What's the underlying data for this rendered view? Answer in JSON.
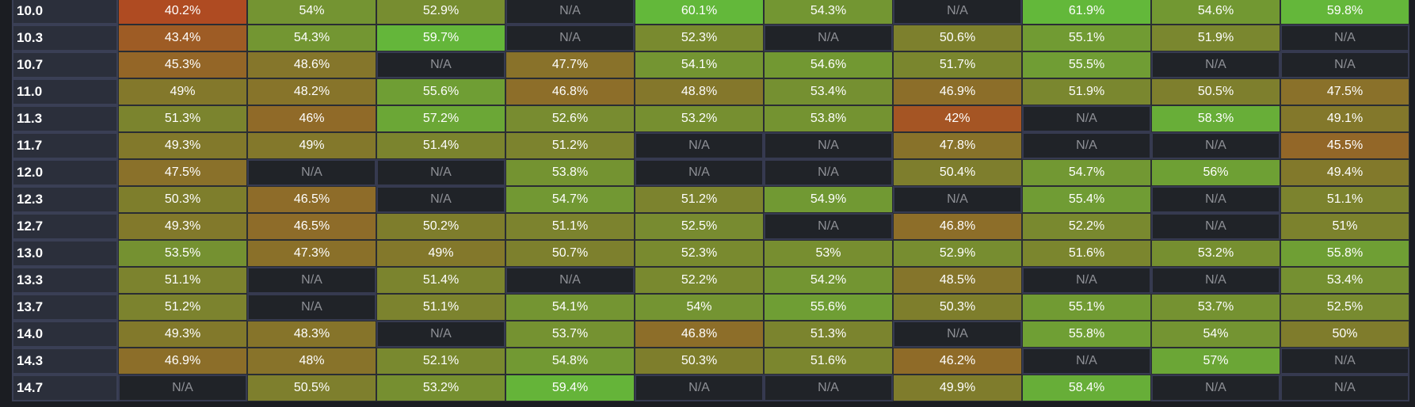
{
  "colors": {
    "low": "#b04a22",
    "mid_low": "#906a28",
    "mid": "#7f7c2c",
    "high": "#63b83a",
    "na_bg": "#202328"
  },
  "na_label": "N/A",
  "rows": [
    {
      "label": "10.0",
      "values": [
        "40.2%",
        "54%",
        "52.9%",
        "N/A",
        "60.1%",
        "54.3%",
        "N/A",
        "61.9%",
        "54.6%",
        "59.8%"
      ]
    },
    {
      "label": "10.3",
      "values": [
        "43.4%",
        "54.3%",
        "59.7%",
        "N/A",
        "52.3%",
        "N/A",
        "50.6%",
        "55.1%",
        "51.9%",
        "N/A"
      ]
    },
    {
      "label": "10.7",
      "values": [
        "45.3%",
        "48.6%",
        "N/A",
        "47.7%",
        "54.1%",
        "54.6%",
        "51.7%",
        "55.5%",
        "N/A",
        "N/A"
      ]
    },
    {
      "label": "11.0",
      "values": [
        "49%",
        "48.2%",
        "55.6%",
        "46.8%",
        "48.8%",
        "53.4%",
        "46.9%",
        "51.9%",
        "50.5%",
        "47.5%"
      ]
    },
    {
      "label": "11.3",
      "values": [
        "51.3%",
        "46%",
        "57.2%",
        "52.6%",
        "53.2%",
        "53.8%",
        "42%",
        "N/A",
        "58.3%",
        "49.1%"
      ]
    },
    {
      "label": "11.7",
      "values": [
        "49.3%",
        "49%",
        "51.4%",
        "51.2%",
        "N/A",
        "N/A",
        "47.8%",
        "N/A",
        "N/A",
        "45.5%"
      ]
    },
    {
      "label": "12.0",
      "values": [
        "47.5%",
        "N/A",
        "N/A",
        "53.8%",
        "N/A",
        "N/A",
        "50.4%",
        "54.7%",
        "56%",
        "49.4%"
      ]
    },
    {
      "label": "12.3",
      "values": [
        "50.3%",
        "46.5%",
        "N/A",
        "54.7%",
        "51.2%",
        "54.9%",
        "N/A",
        "55.4%",
        "N/A",
        "51.1%"
      ]
    },
    {
      "label": "12.7",
      "values": [
        "49.3%",
        "46.5%",
        "50.2%",
        "51.1%",
        "52.5%",
        "N/A",
        "46.8%",
        "52.2%",
        "N/A",
        "51%"
      ]
    },
    {
      "label": "13.0",
      "values": [
        "53.5%",
        "47.3%",
        "49%",
        "50.7%",
        "52.3%",
        "53%",
        "52.9%",
        "51.6%",
        "53.2%",
        "55.8%"
      ]
    },
    {
      "label": "13.3",
      "values": [
        "51.1%",
        "N/A",
        "51.4%",
        "N/A",
        "52.2%",
        "54.2%",
        "48.5%",
        "N/A",
        "N/A",
        "53.4%"
      ]
    },
    {
      "label": "13.7",
      "values": [
        "51.2%",
        "N/A",
        "51.1%",
        "54.1%",
        "54%",
        "55.6%",
        "50.3%",
        "55.1%",
        "53.7%",
        "52.5%"
      ]
    },
    {
      "label": "14.0",
      "values": [
        "49.3%",
        "48.3%",
        "N/A",
        "53.7%",
        "46.8%",
        "51.3%",
        "N/A",
        "55.8%",
        "54%",
        "50%"
      ]
    },
    {
      "label": "14.3",
      "values": [
        "46.9%",
        "48%",
        "52.1%",
        "54.8%",
        "50.3%",
        "51.6%",
        "46.2%",
        "N/A",
        "57%",
        "N/A"
      ]
    },
    {
      "label": "14.7",
      "values": [
        "N/A",
        "50.5%",
        "53.2%",
        "59.4%",
        "N/A",
        "N/A",
        "49.9%",
        "58.4%",
        "N/A",
        "N/A"
      ]
    }
  ]
}
